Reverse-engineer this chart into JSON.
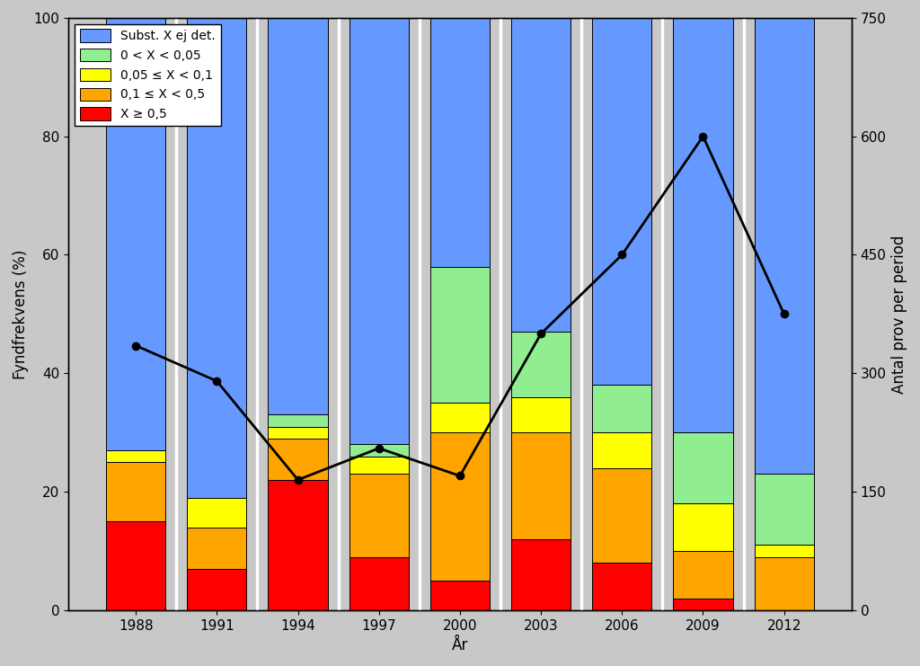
{
  "years": [
    1988,
    1991,
    1994,
    1997,
    2000,
    2003,
    2006,
    2009,
    2012
  ],
  "bar_width": 2.2,
  "stacked_data": {
    "red": [
      15,
      7,
      22,
      9,
      5,
      12,
      8,
      2,
      0
    ],
    "orange": [
      10,
      7,
      7,
      14,
      25,
      18,
      16,
      8,
      9
    ],
    "yellow": [
      2,
      5,
      2,
      3,
      5,
      6,
      6,
      8,
      2
    ],
    "green": [
      0,
      0,
      2,
      2,
      23,
      11,
      8,
      12,
      12
    ],
    "blue": [
      73,
      81,
      67,
      72,
      42,
      53,
      62,
      70,
      77
    ]
  },
  "line_values": [
    335,
    290,
    165,
    205,
    170,
    350,
    450,
    600,
    375
  ],
  "colors": {
    "red": "#ff0000",
    "orange": "#ffa500",
    "yellow": "#ffff00",
    "green": "#90ee90",
    "blue": "#6699ff"
  },
  "legend_labels": {
    "blue": "Subst. X ej det.",
    "green": "0 < X < 0,05",
    "yellow": "0,05 ≤ X < 0,1",
    "orange": "0,1 ≤ X < 0,5",
    "red": "X ≥ 0,5"
  },
  "ylabel_left": "Fyndfrekvens (%)",
  "ylabel_right": "Antal prov per period",
  "xlabel": "År",
  "ylim_left": [
    0,
    100
  ],
  "ylim_right": [
    0,
    750
  ],
  "yticks_left": [
    0,
    20,
    40,
    60,
    80,
    100
  ],
  "yticks_right": [
    0,
    150,
    300,
    450,
    600,
    750
  ],
  "background_color": "#c8c8c8",
  "plot_bg_color": "#c8c8c8",
  "bar_edge_color": "#000000",
  "line_color": "#000000",
  "separator_color": "#ffffff",
  "separator_linewidth": 2.5
}
